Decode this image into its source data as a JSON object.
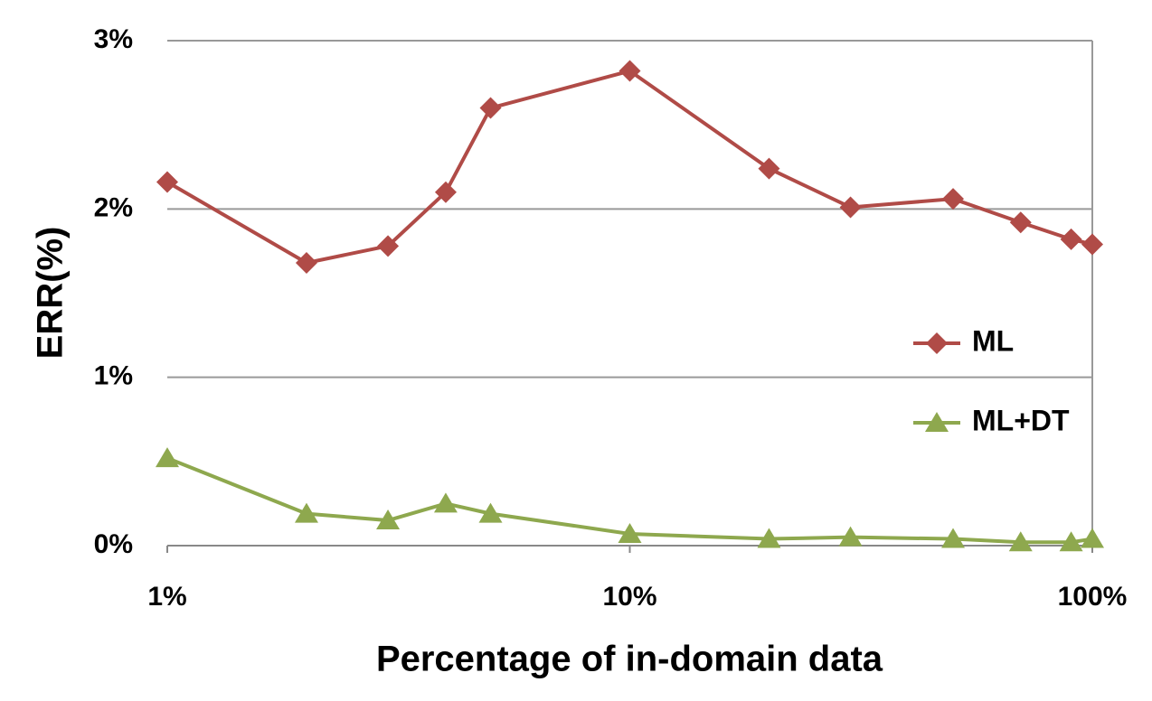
{
  "chart_data": {
    "type": "line",
    "x_label": "Percentage of in-domain data",
    "y_label": "ERR(%)",
    "x": [
      1,
      2,
      3,
      4,
      5,
      10,
      20,
      30,
      50,
      70,
      90,
      100
    ],
    "series": [
      {
        "name": "ML",
        "color": "#b04b47",
        "marker": "diamond",
        "values": [
          2.16,
          1.68,
          1.78,
          2.1,
          2.6,
          2.82,
          2.24,
          2.01,
          2.06,
          1.92,
          1.82,
          1.79
        ]
      },
      {
        "name": "ML+DT",
        "color": "#8ea84e",
        "marker": "triangle",
        "values": [
          0.52,
          0.19,
          0.15,
          0.25,
          0.19,
          0.07,
          0.04,
          0.05,
          0.04,
          0.02,
          0.02,
          0.04
        ]
      }
    ],
    "xscale": "log",
    "xlim": [
      1,
      100
    ],
    "xticks": [
      {
        "value": 1,
        "label": "1%"
      },
      {
        "value": 10,
        "label": "10%"
      },
      {
        "value": 100,
        "label": "100%"
      }
    ],
    "ylim": [
      0,
      3
    ],
    "yticks": [
      {
        "value": 0,
        "label": "0%"
      },
      {
        "value": 1,
        "label": "1%"
      },
      {
        "value": 2,
        "label": "2%"
      },
      {
        "value": 3,
        "label": "3%"
      }
    ],
    "grid": true,
    "legend": "right"
  }
}
